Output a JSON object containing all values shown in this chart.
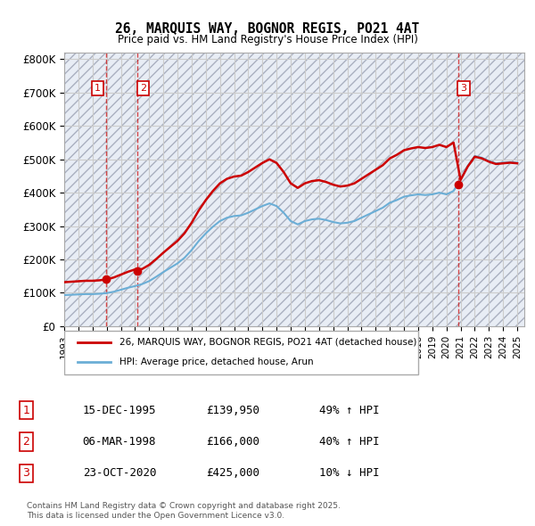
{
  "title": "26, MARQUIS WAY, BOGNOR REGIS, PO21 4AT",
  "subtitle": "Price paid vs. HM Land Registry's House Price Index (HPI)",
  "ylabel_ticks": [
    "£0",
    "£100K",
    "£200K",
    "£300K",
    "£400K",
    "£500K",
    "£600K",
    "£700K",
    "£800K"
  ],
  "ylim": [
    0,
    820000
  ],
  "yticks": [
    0,
    100000,
    200000,
    300000,
    400000,
    500000,
    600000,
    700000,
    800000
  ],
  "sale_dates_num": [
    1995.96,
    1998.18,
    2020.81
  ],
  "sale_prices": [
    139950,
    166000,
    425000
  ],
  "sale_labels": [
    "1",
    "2",
    "3"
  ],
  "legend_line1": "26, MARQUIS WAY, BOGNOR REGIS, PO21 4AT (detached house)",
  "legend_line2": "HPI: Average price, detached house, Arun",
  "table_rows": [
    [
      "1",
      "15-DEC-1995",
      "£139,950",
      "49% ↑ HPI"
    ],
    [
      "2",
      "06-MAR-1998",
      "£166,000",
      "40% ↑ HPI"
    ],
    [
      "3",
      "23-OCT-2020",
      "£425,000",
      "10% ↓ HPI"
    ]
  ],
  "footer": "Contains HM Land Registry data © Crown copyright and database right 2025.\nThis data is licensed under the Open Government Licence v3.0.",
  "hpi_color": "#6baed6",
  "price_color": "#cc0000",
  "bg_hatch_color": "#d0d8e8",
  "grid_color": "#cccccc",
  "sale_marker_color": "#cc0000",
  "hpi_line_color": "#6baed6"
}
